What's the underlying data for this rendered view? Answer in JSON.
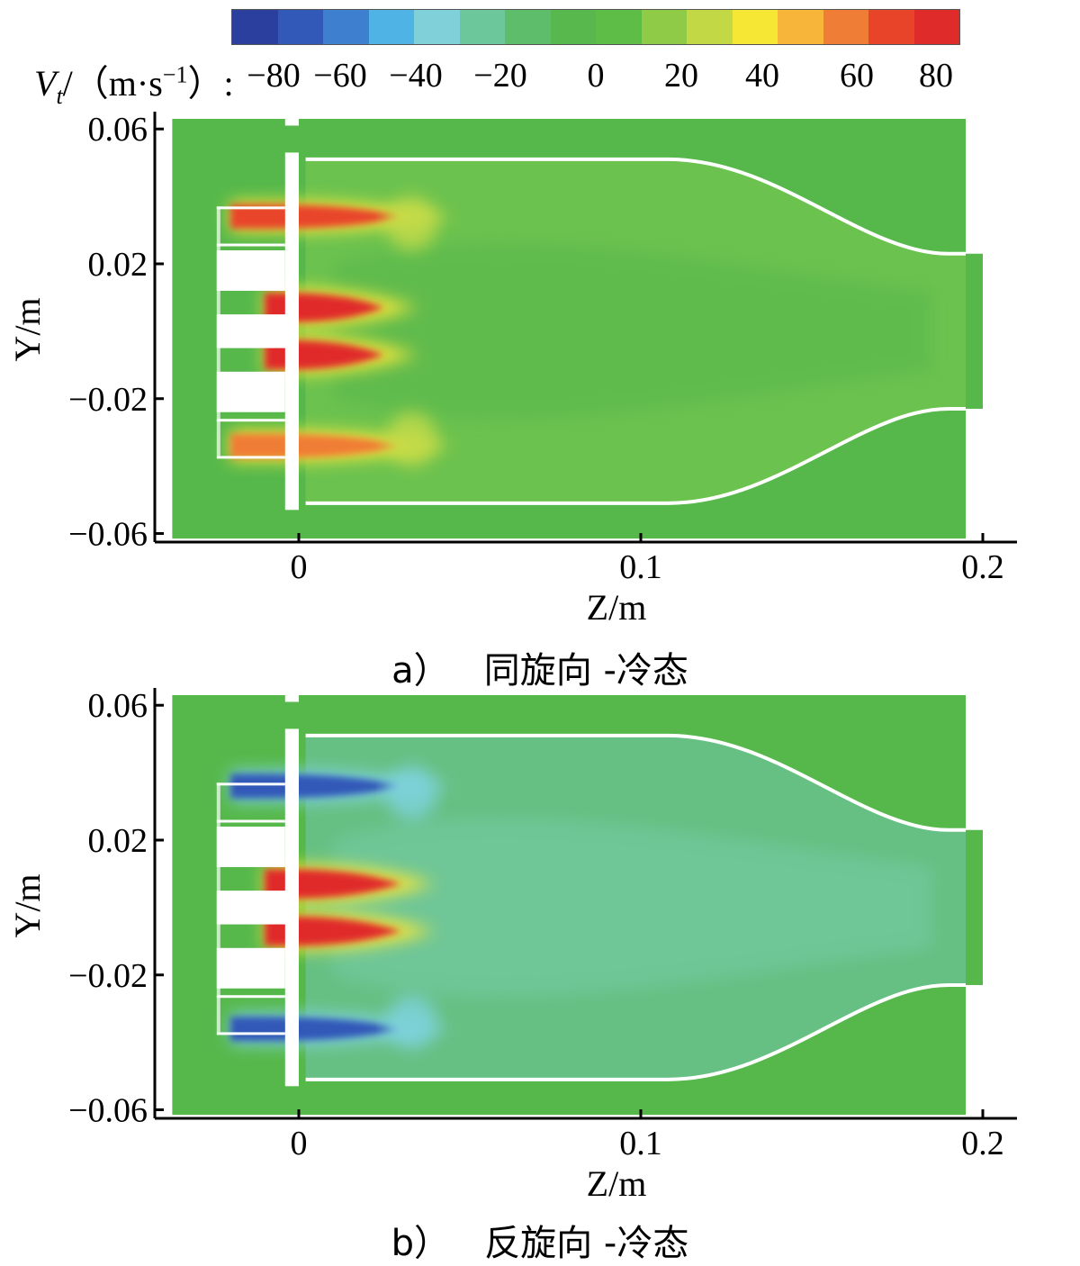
{
  "colorbar": {
    "label_var": "V",
    "label_sub": "t",
    "label_unit": "/（m·s",
    "label_exp": "−1",
    "label_tail": "）:",
    "ticks": [
      "−80",
      "−60",
      "−40",
      "−20",
      "0",
      "20",
      "40",
      "60",
      "80"
    ],
    "tick_values": [
      -80,
      -60,
      -40,
      -20,
      0,
      20,
      40,
      60,
      80
    ],
    "range": [
      -90,
      90
    ],
    "colors": [
      "#2b3f9e",
      "#3359b8",
      "#3f7fd0",
      "#4fb3e6",
      "#7fd0d8",
      "#6cc79a",
      "#5dbd6a",
      "#58b84e",
      "#5ebd47",
      "#8fcb47",
      "#c2d945",
      "#f5e733",
      "#f7b53a",
      "#f07d35",
      "#e8442a",
      "#e02b2b"
    ]
  },
  "chart_data": [
    {
      "type": "heatmap",
      "variable": "Vt (m/s)",
      "xlabel": "Z/m",
      "ylabel": "Y/m",
      "xlim": [
        -0.04,
        0.21
      ],
      "ylim": [
        -0.062,
        0.063
      ],
      "xticks": [
        "0",
        "0.1",
        "0.2"
      ],
      "xtick_values": [
        0,
        0.1,
        0.2
      ],
      "yticks": [
        "0.06",
        "0.02",
        "−0.02",
        "−0.06"
      ],
      "ytick_values": [
        0.06,
        0.02,
        -0.02,
        -0.06
      ],
      "caption_label": "a）",
      "caption_text": "同旋向 -冷态",
      "regions": [
        {
          "name": "upper swirler jet",
          "z": [
            -0.02,
            0.03
          ],
          "y": 0.034,
          "vt": 70
        },
        {
          "name": "center upper jet",
          "z": [
            -0.01,
            0.025
          ],
          "y": 0.007,
          "vt": 80
        },
        {
          "name": "center lower jet",
          "z": [
            -0.01,
            0.025
          ],
          "y": -0.007,
          "vt": 80
        },
        {
          "name": "lower swirler jet",
          "z": [
            -0.02,
            0.03
          ],
          "y": -0.034,
          "vt": 60
        },
        {
          "name": "combustor core",
          "z": [
            0,
            0.19
          ],
          "y": 0,
          "vt": 5
        }
      ]
    },
    {
      "type": "heatmap",
      "variable": "Vt (m/s)",
      "xlabel": "Z/m",
      "ylabel": "Y/m",
      "xlim": [
        -0.04,
        0.21
      ],
      "ylim": [
        -0.062,
        0.063
      ],
      "xticks": [
        "0",
        "0.1",
        "0.2"
      ],
      "xtick_values": [
        0,
        0.1,
        0.2
      ],
      "yticks": [
        "0.06",
        "0.02",
        "−0.02",
        "−0.06"
      ],
      "ytick_values": [
        0.06,
        0.02,
        -0.02,
        -0.06
      ],
      "caption_label": "b）",
      "caption_text": "反旋向 -冷态",
      "regions": [
        {
          "name": "upper swirler jet",
          "z": [
            -0.02,
            0.03
          ],
          "y": 0.036,
          "vt": -70
        },
        {
          "name": "center upper jet",
          "z": [
            -0.01,
            0.03
          ],
          "y": 0.007,
          "vt": 80
        },
        {
          "name": "center lower jet",
          "z": [
            -0.01,
            0.03
          ],
          "y": -0.007,
          "vt": 80
        },
        {
          "name": "lower swirler jet",
          "z": [
            -0.02,
            0.03
          ],
          "y": -0.036,
          "vt": -70
        },
        {
          "name": "combustor core",
          "z": [
            0,
            0.19
          ],
          "y": 0,
          "vt": -10
        }
      ]
    }
  ]
}
